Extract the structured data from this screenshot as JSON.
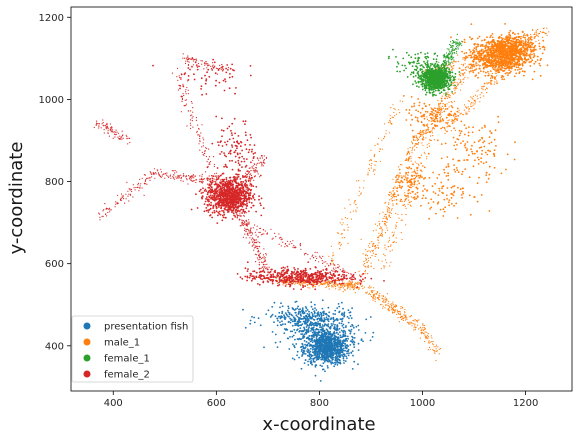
{
  "chart_data": {
    "type": "scatter",
    "title": "",
    "xlabel": "x-coordinate",
    "ylabel": "y-coordinate",
    "xlim": [
      318,
      1290
    ],
    "ylim": [
      290,
      1225
    ],
    "xticks": [
      400,
      600,
      800,
      1000,
      1200
    ],
    "yticks": [
      400,
      600,
      800,
      1000,
      1200
    ],
    "grid": false,
    "legend_position": "lower-left",
    "series": [
      {
        "name": "presentation fish",
        "color": "#1f77b4",
        "clusters": [
          {
            "center": [
              815,
              395
            ],
            "spread": [
              22,
              20
            ],
            "n": 900
          },
          {
            "center": [
              800,
              440
            ],
            "spread": [
              38,
              25
            ],
            "n": 350
          },
          {
            "center": [
              772,
              470
            ],
            "spread": [
              40,
              14
            ],
            "n": 220
          }
        ],
        "trails": []
      },
      {
        "name": "male_1",
        "color": "#ff7f0e",
        "clusters": [
          {
            "center": [
              1150,
              1105
            ],
            "spread": [
              28,
              22
            ],
            "n": 900
          },
          {
            "center": [
              1180,
              1130
            ],
            "spread": [
              22,
              15
            ],
            "n": 300
          },
          {
            "center": [
              1020,
              960
            ],
            "spread": [
              28,
              22
            ],
            "n": 120
          },
          {
            "center": [
              980,
              790
            ],
            "spread": [
              18,
              25
            ],
            "n": 100
          },
          {
            "center": [
              1100,
              880
            ],
            "spread": [
              35,
              40
            ],
            "n": 110
          },
          {
            "center": [
              1050,
              780
            ],
            "spread": [
              25,
              30
            ],
            "n": 90
          }
        ],
        "trails": [
          {
            "from": [
              720,
              560
            ],
            "to": [
              880,
              545
            ],
            "n": 320
          },
          {
            "from": [
              890,
              540
            ],
            "to": [
              1000,
              440
            ],
            "n": 200
          },
          {
            "from": [
              1000,
              440
            ],
            "to": [
              1030,
              380
            ],
            "n": 60
          },
          {
            "from": [
              880,
              560
            ],
            "to": [
              980,
              880
            ],
            "n": 220
          },
          {
            "from": [
              980,
              880
            ],
            "to": [
              1090,
              1080
            ],
            "n": 200
          },
          {
            "from": [
              920,
              580
            ],
            "to": [
              1040,
              1000
            ],
            "n": 150
          },
          {
            "from": [
              1090,
              1080
            ],
            "to": [
              1240,
              1170
            ],
            "n": 150
          },
          {
            "from": [
              1000,
              1060
            ],
            "to": [
              1130,
              1120
            ],
            "n": 100
          },
          {
            "from": [
              820,
              600
            ],
            "to": [
              960,
              1010
            ],
            "n": 120
          },
          {
            "from": [
              1040,
              920
            ],
            "to": [
              1160,
              1080
            ],
            "n": 120
          }
        ]
      },
      {
        "name": "female_1",
        "color": "#2ca02c",
        "clusters": [
          {
            "center": [
              1025,
              1050
            ],
            "spread": [
              14,
              14
            ],
            "n": 900
          },
          {
            "center": [
              995,
              1080
            ],
            "spread": [
              25,
              18
            ],
            "n": 100
          }
        ],
        "trails": [
          {
            "from": [
              1030,
              1060
            ],
            "to": [
              1070,
              1145
            ],
            "n": 200
          }
        ]
      },
      {
        "name": "female_2",
        "color": "#d62728",
        "clusters": [
          {
            "center": [
              625,
              765
            ],
            "spread": [
              22,
              22
            ],
            "n": 900
          },
          {
            "center": [
              760,
              568
            ],
            "spread": [
              50,
              10
            ],
            "n": 500
          },
          {
            "center": [
              580,
              1060
            ],
            "spread": [
              35,
              25
            ],
            "n": 60
          },
          {
            "center": [
              640,
              870
            ],
            "spread": [
              20,
              40
            ],
            "n": 120
          }
        ],
        "trails": [
          {
            "from": [
              630,
              760
            ],
            "to": [
              700,
              580
            ],
            "n": 220
          },
          {
            "from": [
              600,
              800
            ],
            "to": [
              480,
              820
            ],
            "n": 120
          },
          {
            "from": [
              480,
              820
            ],
            "to": [
              370,
              710
            ],
            "n": 100
          },
          {
            "from": [
              600,
              800
            ],
            "to": [
              520,
              1070
            ],
            "n": 120
          },
          {
            "from": [
              540,
              1100
            ],
            "to": [
              620,
              1070
            ],
            "n": 80
          },
          {
            "from": [
              370,
              940
            ],
            "to": [
              430,
              900
            ],
            "n": 80
          },
          {
            "from": [
              640,
              760
            ],
            "to": [
              690,
              860
            ],
            "n": 120
          },
          {
            "from": [
              660,
              700
            ],
            "to": [
              880,
              560
            ],
            "n": 120
          }
        ]
      }
    ]
  }
}
